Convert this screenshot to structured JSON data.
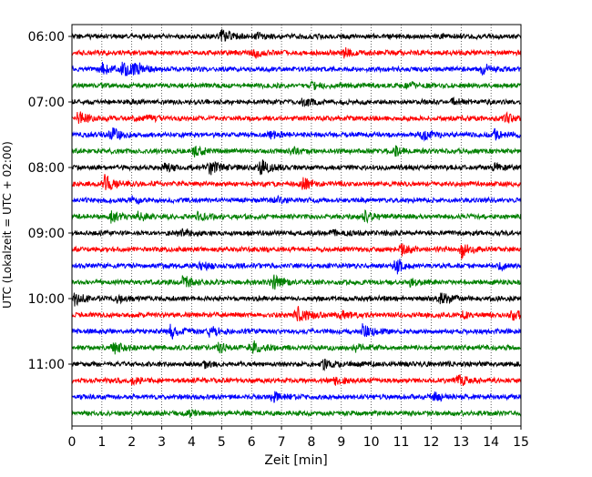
{
  "chart_data": {
    "type": "line",
    "title": "",
    "xlabel": "Zeit  [min]",
    "ylabel": "UTC (Lokalzeit = UTC + 02:00)",
    "xlim": [
      0,
      15
    ],
    "x_ticks": [
      "0",
      "1",
      "2",
      "3",
      "4",
      "5",
      "6",
      "7",
      "8",
      "9",
      "10",
      "11",
      "12",
      "13",
      "14",
      "15"
    ],
    "y_tick_labels": [
      "06:00",
      "07:00",
      "08:00",
      "09:00",
      "10:00",
      "11:00"
    ],
    "y_tick_rows": [
      0,
      4,
      8,
      12,
      16,
      20
    ],
    "grid": "vertical dotted",
    "row_interval_minutes": 15,
    "trace_colors": [
      "#000000",
      "#ff0000",
      "#0000ff",
      "#008000"
    ],
    "traces": [
      {
        "start": "06:00",
        "events": [
          [
            5.0,
            7.5
          ],
          [
            6.2,
            3
          ],
          [
            12.4,
            2
          ]
        ]
      },
      {
        "start": "06:15",
        "events": [
          [
            6.1,
            5
          ],
          [
            9.1,
            5
          ],
          [
            15.0,
            5
          ]
        ]
      },
      {
        "start": "06:30",
        "events": [
          [
            1.0,
            6
          ],
          [
            1.7,
            9
          ],
          [
            2.1,
            6
          ],
          [
            13.7,
            6
          ]
        ]
      },
      {
        "start": "06:45",
        "events": [
          [
            8.0,
            3
          ],
          [
            11.2,
            3
          ]
        ]
      },
      {
        "start": "07:00",
        "events": [
          [
            7.7,
            5
          ],
          [
            12.7,
            3
          ]
        ]
      },
      {
        "start": "07:15",
        "events": [
          [
            0.2,
            7
          ],
          [
            2.5,
            3
          ],
          [
            14.5,
            4
          ]
        ]
      },
      {
        "start": "07:30",
        "events": [
          [
            1.3,
            8
          ],
          [
            6.6,
            4
          ],
          [
            11.7,
            5
          ],
          [
            14.1,
            5
          ]
        ]
      },
      {
        "start": "07:45",
        "events": [
          [
            4.1,
            5
          ],
          [
            7.3,
            4
          ],
          [
            10.8,
            4
          ]
        ]
      },
      {
        "start": "08:00",
        "events": [
          [
            3.1,
            5
          ],
          [
            4.6,
            7
          ],
          [
            6.3,
            9
          ],
          [
            14.1,
            4
          ]
        ]
      },
      {
        "start": "08:15",
        "events": [
          [
            1.1,
            9
          ],
          [
            7.7,
            6
          ]
        ]
      },
      {
        "start": "08:30",
        "events": [
          [
            2.0,
            3
          ],
          [
            6.8,
            3
          ]
        ]
      },
      {
        "start": "08:45",
        "events": [
          [
            1.3,
            6
          ],
          [
            2.2,
            5
          ],
          [
            4.2,
            5
          ],
          [
            9.8,
            6
          ]
        ]
      },
      {
        "start": "09:00",
        "events": [
          [
            3.6,
            5
          ],
          [
            8.7,
            4
          ]
        ]
      },
      {
        "start": "09:15",
        "events": [
          [
            11.0,
            6
          ],
          [
            13.0,
            9
          ]
        ]
      },
      {
        "start": "09:30",
        "events": [
          [
            4.3,
            4
          ],
          [
            10.8,
            9
          ],
          [
            14.3,
            3
          ]
        ]
      },
      {
        "start": "09:45",
        "events": [
          [
            3.7,
            7
          ],
          [
            6.7,
            8
          ],
          [
            11.3,
            4
          ]
        ]
      },
      {
        "start": "10:00",
        "events": [
          [
            0.1,
            8
          ],
          [
            1.5,
            4
          ],
          [
            12.3,
            6
          ]
        ]
      },
      {
        "start": "10:15",
        "events": [
          [
            7.5,
            10
          ],
          [
            9.0,
            4
          ],
          [
            13.0,
            4
          ],
          [
            14.7,
            6
          ]
        ]
      },
      {
        "start": "10:30",
        "events": [
          [
            3.3,
            8
          ],
          [
            4.6,
            6
          ],
          [
            9.7,
            8
          ]
        ]
      },
      {
        "start": "10:45",
        "events": [
          [
            1.4,
            6
          ],
          [
            4.9,
            5
          ],
          [
            6.0,
            8
          ],
          [
            9.5,
            4
          ]
        ]
      },
      {
        "start": "11:00",
        "events": [
          [
            4.4,
            3
          ],
          [
            8.4,
            4
          ]
        ]
      },
      {
        "start": "11:15",
        "events": [
          [
            2.0,
            3
          ],
          [
            8.8,
            5
          ],
          [
            12.9,
            6
          ]
        ]
      },
      {
        "start": "11:30",
        "events": [
          [
            6.7,
            6
          ],
          [
            12.1,
            4
          ]
        ]
      },
      {
        "start": "11:45",
        "events": [
          [
            3.9,
            3
          ]
        ]
      }
    ]
  }
}
